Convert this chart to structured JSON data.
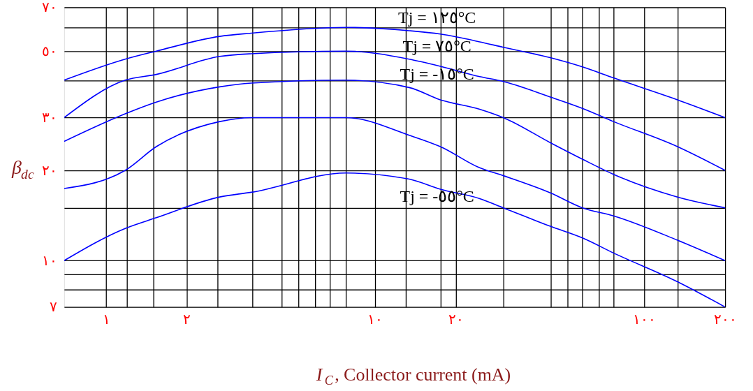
{
  "chart_data": {
    "type": "line",
    "xlabel": "I$_{C}$, Collector current (mA)",
    "ylabel": "β$_{dc}$",
    "log": "xy",
    "xlim": [
      0.7,
      200
    ],
    "ylim": [
      7,
      70
    ],
    "xticks": [
      {
        "value": 1,
        "label": "١"
      },
      {
        "value": 1.2,
        "label": null
      },
      {
        "value": 1.5,
        "label": null
      },
      {
        "value": 2,
        "label": "٢"
      },
      {
        "value": 2.6,
        "label": null
      },
      {
        "value": 3.5,
        "label": null
      },
      {
        "value": 4.5,
        "label": null
      },
      {
        "value": 5.2,
        "label": null
      },
      {
        "value": 6,
        "label": null
      },
      {
        "value": 6.8,
        "label": null
      },
      {
        "value": 7.8,
        "label": null
      },
      {
        "value": 10,
        "label": "١٠"
      },
      {
        "value": 13,
        "label": null
      },
      {
        "value": 17.5,
        "label": null
      },
      {
        "value": 20,
        "label": "٢٠"
      },
      {
        "value": 30,
        "label": null
      },
      {
        "value": 45,
        "label": null
      },
      {
        "value": 52,
        "label": null
      },
      {
        "value": 59,
        "label": null
      },
      {
        "value": 68,
        "label": null
      },
      {
        "value": 77,
        "label": null
      },
      {
        "value": 100,
        "label": "١٠٠"
      },
      {
        "value": 133,
        "label": null
      },
      {
        "value": 200,
        "label": "٢٠٠"
      }
    ],
    "yticks": [
      {
        "value": 7,
        "label": "٧"
      },
      {
        "value": 8,
        "label": null
      },
      {
        "value": 9,
        "label": null
      },
      {
        "value": 10,
        "label": "١٠"
      },
      {
        "value": 15,
        "label": null
      },
      {
        "value": 20,
        "label": "٢٠"
      },
      {
        "value": 30,
        "label": "٣٠"
      },
      {
        "value": 40,
        "label": null
      },
      {
        "value": 50,
        "label": "٥٠"
      },
      {
        "value": 60,
        "label": null
      },
      {
        "value": 70,
        "label": "٧٠"
      }
    ],
    "grid": true,
    "line_style": "solid",
    "marker": "none",
    "x": [
      0.7,
      1.18,
      1.54,
      2.65,
      3.47,
      7.8,
      13.4,
      17.5,
      24.5,
      30,
      45,
      59,
      77,
      133,
      200
    ],
    "series": [
      {
        "name": "Tj = ١٢٥°C",
        "color": "#0000ff",
        "values": [
          40,
          47,
          50,
          56,
          57.4,
          60,
          58.5,
          57,
          53.7,
          51.5,
          47.5,
          44.3,
          40.7,
          34.4,
          30
        ]
      },
      {
        "name": "Tj = ٧٥°C",
        "color": "#0000ff",
        "values": [
          30,
          40,
          41.8,
          48,
          49,
          50,
          47,
          44.5,
          41.1,
          39.6,
          35.1,
          32.2,
          29.1,
          24,
          20
        ]
      },
      {
        "name": "Tj = -١٥°C",
        "color": "#0000ff",
        "values": [
          25,
          30.9,
          33.8,
          38,
          39.1,
          40,
          37.8,
          34.4,
          32,
          30,
          24.7,
          21.8,
          19.4,
          16.3,
          15
        ]
      },
      {
        "color": "#0000ff",
        "values": [
          17.4,
          20,
          24,
          29.1,
          30,
          30,
          26.2,
          24,
          20.4,
          19.2,
          16.8,
          15,
          14.1,
          11.7,
          10
        ]
      },
      {
        "name": "Tj = -٥٥°C",
        "color": "#0000ff",
        "values": [
          10,
          12.8,
          13.9,
          16.3,
          16.9,
          19.6,
          18.7,
          17.3,
          16.1,
          15,
          13,
          11.9,
          10.6,
          8.5,
          7
        ]
      }
    ]
  }
}
